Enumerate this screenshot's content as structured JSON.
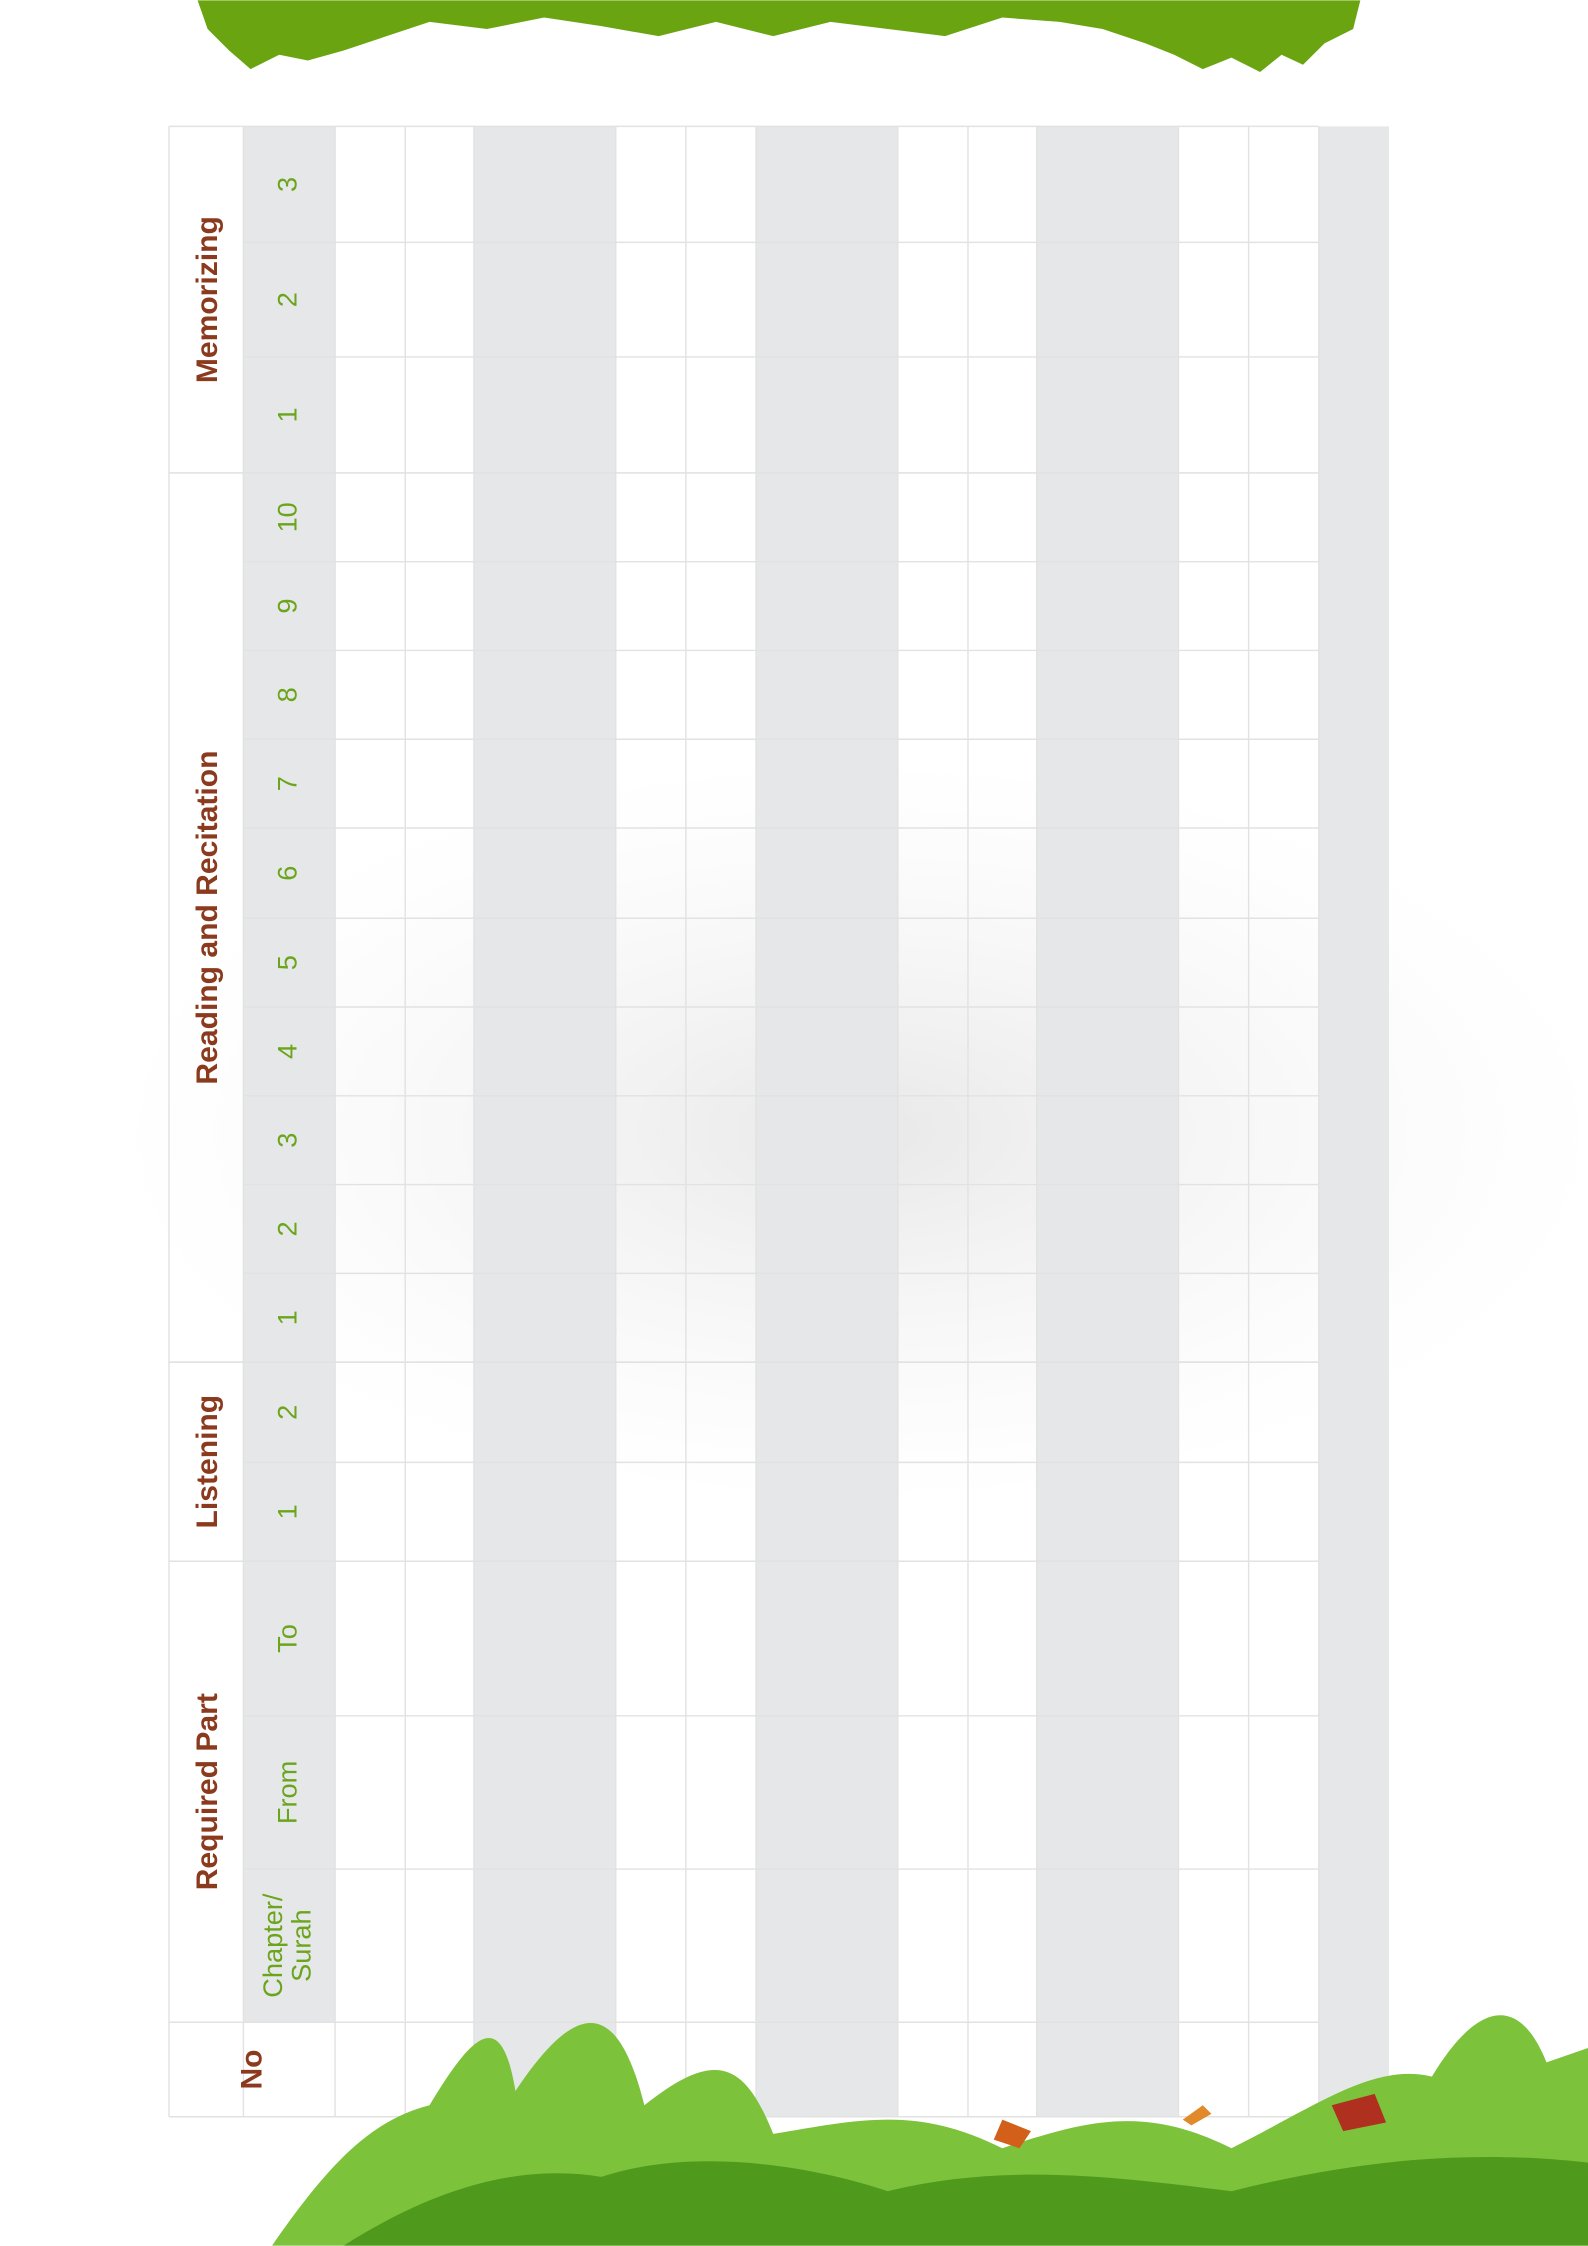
{
  "table": {
    "groups": [
      {
        "label": "Memorizing",
        "columns": [
          "3",
          "2",
          "1"
        ]
      },
      {
        "label": "Reading and Recitation",
        "columns": [
          "10",
          "9",
          "8",
          "7",
          "6",
          "5",
          "4",
          "3",
          "2",
          "1"
        ]
      },
      {
        "label": "Listening",
        "columns": [
          "2",
          "1"
        ]
      },
      {
        "label": "Required Part",
        "columns": [
          "To",
          "From",
          [
            "Chapter/",
            "Surah"
          ]
        ]
      },
      {
        "label": "No",
        "columns": []
      }
    ]
  }
}
